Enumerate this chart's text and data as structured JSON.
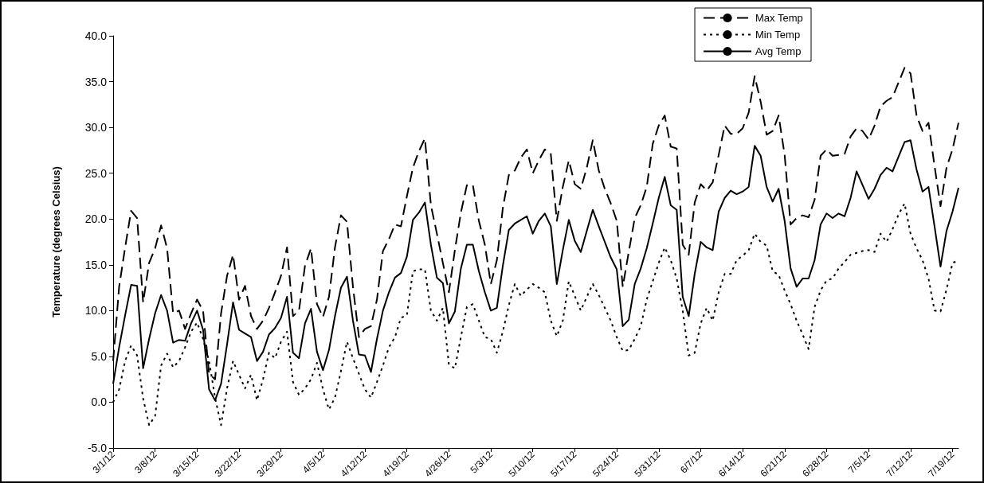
{
  "chart_data": {
    "type": "line",
    "ylabel": "Temperature (degrees Celsius)",
    "categories": [
      "3/1/12",
      null,
      null,
      null,
      null,
      null,
      null,
      "3/8/12",
      null,
      null,
      null,
      null,
      null,
      null,
      "3/15/12",
      null,
      null,
      null,
      null,
      null,
      null,
      "3/22/12",
      null,
      null,
      null,
      null,
      null,
      null,
      "3/29/12",
      null,
      null,
      null,
      null,
      null,
      null,
      "4/5/12",
      null,
      null,
      null,
      null,
      null,
      null,
      "4/12/12",
      null,
      null,
      null,
      null,
      null,
      null,
      "4/19/12",
      null,
      null,
      null,
      null,
      null,
      null,
      "4/26/12",
      null,
      null,
      null,
      null,
      null,
      null,
      "5/3/12",
      null,
      null,
      null,
      null,
      null,
      null,
      "5/10/12",
      null,
      null,
      null,
      null,
      null,
      null,
      "5/17/12",
      null,
      null,
      null,
      null,
      null,
      null,
      "5/24/12",
      null,
      null,
      null,
      null,
      null,
      null,
      "5/31/12",
      null,
      null,
      null,
      null,
      null,
      null,
      "6/7/12",
      null,
      null,
      null,
      null,
      null,
      null,
      "6/14/12",
      null,
      null,
      null,
      null,
      null,
      null,
      "6/21/12",
      null,
      null,
      null,
      null,
      null,
      null,
      "6/28/12",
      null,
      null,
      null,
      null,
      null,
      null,
      "7/5/12",
      null,
      null,
      null,
      null,
      null,
      null,
      "7/12/12",
      null,
      null,
      null,
      null,
      null,
      null,
      "7/19/12",
      null
    ],
    "series": [
      {
        "name": "Max Temp",
        "color": "#000000",
        "line_style": "dashed",
        "values": [
          4.5,
          12.6,
          16.9,
          20.9,
          20.1,
          10.9,
          15.2,
          16.8,
          19.3,
          16.8,
          9.7,
          10.0,
          8.0,
          9.7,
          11.2,
          10.0,
          3.1,
          2.5,
          9.7,
          13.8,
          16.1,
          11.2,
          12.7,
          9.4,
          8.0,
          8.9,
          10.3,
          12.0,
          13.8,
          16.9,
          9.4,
          10.0,
          14.9,
          16.8,
          10.7,
          9.3,
          11.5,
          16.9,
          20.4,
          19.7,
          12.6,
          7.1,
          8.0,
          8.3,
          11.2,
          16.5,
          17.8,
          19.4,
          19.2,
          22.5,
          25.6,
          27.4,
          28.8,
          21.5,
          18.4,
          15.2,
          12.0,
          16.6,
          20.7,
          23.7,
          23.7,
          19.8,
          17.2,
          12.9,
          15.5,
          21.2,
          24.8,
          25.3,
          26.7,
          27.6,
          25.0,
          26.4,
          27.6,
          27.1,
          19.8,
          23.5,
          26.4,
          23.8,
          23.3,
          25.6,
          28.6,
          25.3,
          23.3,
          21.7,
          19.8,
          12.6,
          16.4,
          20.1,
          21.5,
          23.5,
          28.2,
          30.2,
          31.3,
          27.9,
          27.7,
          17.2,
          16.1,
          21.8,
          23.8,
          23.1,
          24.0,
          27.0,
          30.2,
          29.3,
          29.3,
          29.9,
          31.6,
          35.6,
          32.8,
          29.2,
          29.6,
          31.3,
          27.0,
          19.4,
          20.1,
          20.4,
          20.2,
          22.1,
          26.9,
          27.6,
          26.9,
          27.0,
          27.1,
          29.0,
          29.9,
          29.6,
          28.7,
          30.2,
          32.3,
          32.9,
          33.3,
          34.9,
          36.5,
          35.9,
          31.3,
          29.6,
          30.5,
          25.8,
          21.4,
          25.6,
          27.6,
          30.5
        ]
      },
      {
        "name": "Min Temp",
        "color": "#000000",
        "line_style": "dotted",
        "values": [
          0.0,
          1.4,
          4.5,
          6.2,
          5.1,
          0.4,
          -2.5,
          -1.5,
          4.0,
          5.3,
          3.8,
          4.5,
          6.0,
          7.7,
          8.7,
          6.9,
          4.5,
          0.5,
          -2.5,
          1.5,
          4.5,
          3.0,
          1.5,
          3.0,
          0.2,
          2.5,
          5.4,
          4.8,
          6.6,
          7.7,
          2.2,
          0.8,
          1.5,
          2.5,
          4.3,
          1.4,
          -0.8,
          0.5,
          3.4,
          6.6,
          4.8,
          3.1,
          1.4,
          0.5,
          2.2,
          4.0,
          6.0,
          7.1,
          9.2,
          9.5,
          14.3,
          14.5,
          14.5,
          10.0,
          8.9,
          10.3,
          4.1,
          3.7,
          7.1,
          10.4,
          10.7,
          8.9,
          7.1,
          6.9,
          5.4,
          7.7,
          10.6,
          12.9,
          11.6,
          12.3,
          12.9,
          12.5,
          12.0,
          8.9,
          7.2,
          8.9,
          13.2,
          11.6,
          10.0,
          11.5,
          12.9,
          11.7,
          10.3,
          8.9,
          7.1,
          5.6,
          5.7,
          6.9,
          8.3,
          11.2,
          13.2,
          15.2,
          16.9,
          15.5,
          13.5,
          10.0,
          5.1,
          5.4,
          8.6,
          10.3,
          8.9,
          12.0,
          14.0,
          14.0,
          15.5,
          16.0,
          16.6,
          18.4,
          17.5,
          17.1,
          14.3,
          13.9,
          12.2,
          10.7,
          8.9,
          7.4,
          5.8,
          10.4,
          12.2,
          13.3,
          13.5,
          14.6,
          15.3,
          16.1,
          16.3,
          16.5,
          16.6,
          16.4,
          18.4,
          17.5,
          18.9,
          20.5,
          21.7,
          18.4,
          16.8,
          15.5,
          13.5,
          10.0,
          9.9,
          12.3,
          15.2,
          15.5
        ]
      },
      {
        "name": "Avg Temp",
        "color": "#000000",
        "line_style": "solid",
        "values": [
          2.0,
          6.0,
          9.5,
          12.8,
          12.7,
          3.7,
          6.9,
          9.7,
          11.7,
          10.0,
          6.5,
          6.8,
          6.7,
          8.6,
          10.0,
          7.9,
          1.4,
          0.2,
          2.0,
          6.3,
          10.9,
          7.9,
          7.5,
          7.1,
          4.5,
          5.5,
          7.4,
          8.1,
          9.2,
          11.5,
          5.4,
          4.8,
          8.6,
          10.2,
          5.5,
          3.5,
          5.7,
          9.4,
          12.5,
          13.7,
          8.9,
          5.2,
          5.1,
          3.3,
          6.9,
          10.0,
          12.0,
          13.6,
          14.1,
          15.9,
          19.9,
          20.7,
          21.8,
          17.2,
          13.6,
          13.0,
          8.6,
          9.9,
          14.6,
          17.2,
          17.2,
          14.3,
          12.0,
          10.0,
          10.3,
          14.9,
          18.8,
          19.5,
          19.9,
          20.3,
          18.4,
          19.8,
          20.6,
          19.2,
          12.9,
          16.6,
          19.9,
          17.6,
          16.4,
          18.7,
          21.0,
          19.2,
          17.5,
          15.8,
          14.5,
          8.3,
          9.0,
          12.9,
          14.6,
          16.8,
          19.5,
          22.3,
          24.6,
          21.5,
          21.0,
          11.5,
          9.4,
          14.0,
          17.5,
          16.9,
          16.6,
          20.8,
          22.3,
          23.1,
          22.7,
          23.0,
          23.5,
          28.0,
          26.9,
          23.5,
          21.9,
          23.3,
          19.8,
          14.6,
          12.6,
          13.5,
          13.5,
          15.5,
          19.4,
          20.6,
          20.1,
          20.6,
          20.3,
          22.3,
          25.2,
          23.7,
          22.2,
          23.3,
          24.8,
          25.6,
          25.2,
          26.8,
          28.4,
          28.6,
          25.4,
          23.0,
          23.5,
          19.2,
          14.8,
          18.7,
          20.8,
          23.4
        ]
      }
    ],
    "ylim": [
      -5,
      40
    ],
    "yticks": [
      {
        "value": -5,
        "label": "-5.0"
      },
      {
        "value": 0,
        "label": "0.0"
      },
      {
        "value": 5,
        "label": "5.0"
      },
      {
        "value": 10,
        "label": "10.0"
      },
      {
        "value": 15,
        "label": "15.0"
      },
      {
        "value": 20,
        "label": "20.0"
      },
      {
        "value": 25,
        "label": "25.0"
      },
      {
        "value": 30,
        "label": "30.0"
      },
      {
        "value": 35,
        "label": "35.0"
      },
      {
        "value": 40,
        "label": "40.0"
      }
    ],
    "legend": "top right",
    "marker": "none"
  }
}
